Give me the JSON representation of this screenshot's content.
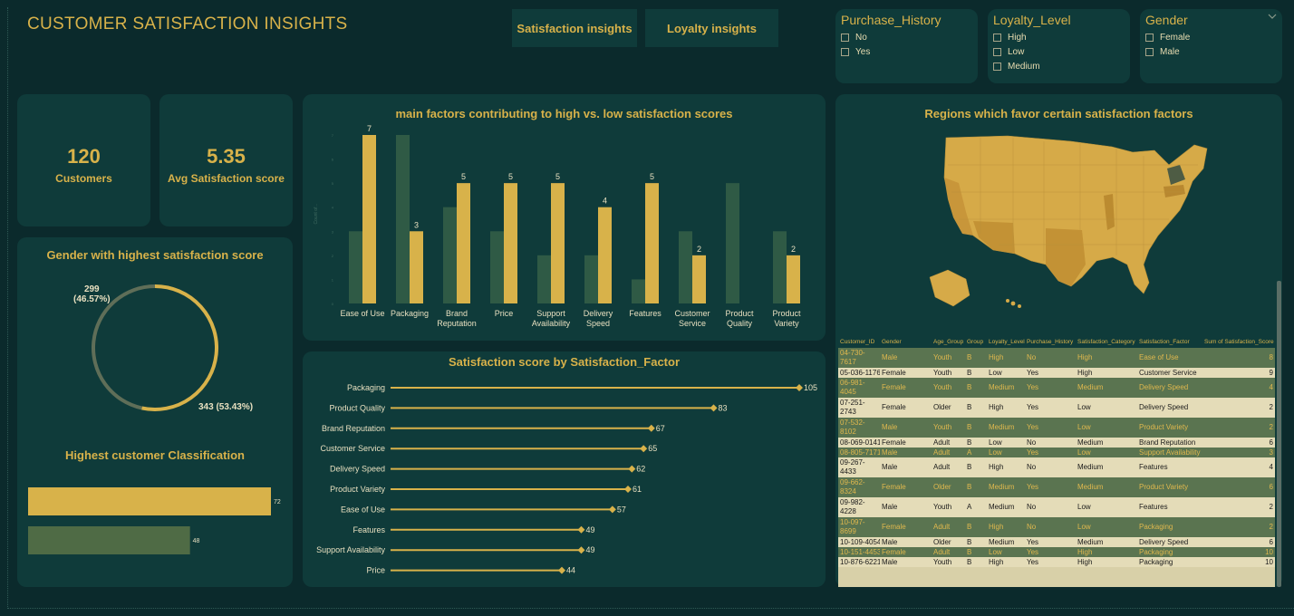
{
  "header": {
    "title": "CUSTOMER SATISFACTION  INSIGHTS",
    "nav": [
      {
        "label": "Satisfaction insights"
      },
      {
        "label": "Loyalty insights"
      }
    ]
  },
  "slicers": [
    {
      "title": "Purchase_History",
      "items": [
        "No",
        "Yes"
      ]
    },
    {
      "title": "Loyalty_Level",
      "items": [
        "High",
        "Low",
        "Medium"
      ]
    },
    {
      "title": "Gender",
      "items": [
        "Female",
        "Male"
      ],
      "icon": "chevron-down-icon"
    }
  ],
  "kpis": [
    {
      "value": "120",
      "label": "Customers"
    },
    {
      "value": "5.35",
      "label": "Avg Satisfaction score"
    }
  ],
  "gender_donut": {
    "title": "Gender with highest satisfaction score",
    "label_a": "299",
    "label_a_pct": "(46.57%)",
    "label_b": "343 (53.43%)"
  },
  "classification": {
    "title": "Highest customer Classification"
  },
  "factors_chart": {
    "title": "main factors contributing to high vs. low satisfaction scores",
    "ylabel": "Count of..."
  },
  "score_chart": {
    "title": "Satisfaction score by Satisfaction_Factor"
  },
  "map": {
    "title": "Regions which favor certain satisfaction factors"
  },
  "chart_data": [
    {
      "type": "bar",
      "title": "main factors contributing to high vs. low satisfaction scores",
      "categories": [
        "Ease of Use",
        "Packaging",
        "Brand Reputation",
        "Price",
        "Support Availability",
        "Delivery Speed",
        "Features",
        "Customer Service",
        "Product Quality",
        "Product Variety"
      ],
      "series": [
        {
          "values": [
            3,
            7,
            4,
            3,
            2,
            2,
            1,
            3,
            5,
            3
          ],
          "color": "#2f5a45"
        },
        {
          "values": [
            7,
            3,
            5,
            5,
            5,
            4,
            5,
            2,
            0,
            2
          ],
          "color": "#d8b24a"
        }
      ],
      "ylim": [
        0,
        7
      ]
    },
    {
      "type": "line",
      "title": "Satisfaction score by Satisfaction_Factor",
      "categories": [
        "Packaging",
        "Product Quality",
        "Brand Reputation",
        "Customer Service",
        "Delivery Speed",
        "Product Variety",
        "Ease of Use",
        "Features",
        "Support Availability",
        "Price"
      ],
      "values": [
        105,
        83,
        67,
        65,
        62,
        61,
        57,
        49,
        49,
        44
      ],
      "xlim": [
        0,
        105
      ]
    },
    {
      "type": "pie",
      "title": "Gender with highest satisfaction score",
      "categories": [
        "",
        ""
      ],
      "values": [
        299,
        343
      ],
      "colors": [
        "#5f6e58",
        "#d8b24a"
      ]
    },
    {
      "type": "bar",
      "title": "Highest customer Classification",
      "values": [
        72,
        48
      ],
      "colors": [
        "#d8b24a",
        "#4f6b45"
      ]
    }
  ],
  "table": {
    "columns": [
      "Customer_ID",
      "Gender",
      "Age_Group",
      "Group",
      "Loyalty_Level",
      "Purchase_History",
      "Satisfaction_Category",
      "Satisfaction_Factor",
      "Sum of Satisfaction_Score"
    ],
    "rows": [
      [
        "04-730-7617",
        "Male",
        "Youth",
        "B",
        "High",
        "No",
        "High",
        "Ease of Use",
        "8"
      ],
      [
        "05-036-1176",
        "Female",
        "Youth",
        "B",
        "Low",
        "Yes",
        "High",
        "Customer Service",
        "9"
      ],
      [
        "06-981-4045",
        "Female",
        "Youth",
        "B",
        "Medium",
        "Yes",
        "Medium",
        "Delivery Speed",
        "4"
      ],
      [
        "07-251-2743",
        "Female",
        "Older",
        "B",
        "High",
        "Yes",
        "Low",
        "Delivery Speed",
        "2"
      ],
      [
        "07-532-8102",
        "Male",
        "Youth",
        "B",
        "Medium",
        "Yes",
        "Low",
        "Product Variety",
        "2"
      ],
      [
        "08-069-0141",
        "Female",
        "Adult",
        "B",
        "Low",
        "No",
        "Medium",
        "Brand Reputation",
        "6"
      ],
      [
        "08-805-7171",
        "Male",
        "Adult",
        "A",
        "Low",
        "Yes",
        "Low",
        "Support Availability",
        "3"
      ],
      [
        "09-267-4433",
        "Male",
        "Adult",
        "B",
        "High",
        "No",
        "Medium",
        "Features",
        "4"
      ],
      [
        "09-662-8324",
        "Female",
        "Older",
        "B",
        "Medium",
        "Yes",
        "Medium",
        "Product Variety",
        "6"
      ],
      [
        "09-982-4228",
        "Male",
        "Youth",
        "A",
        "Medium",
        "No",
        "Low",
        "Features",
        "2"
      ],
      [
        "10-097-8699",
        "Female",
        "Adult",
        "B",
        "High",
        "No",
        "Low",
        "Packaging",
        "2"
      ],
      [
        "10-109-4054",
        "Male",
        "Older",
        "B",
        "Medium",
        "Yes",
        "Medium",
        "Delivery Speed",
        "6"
      ],
      [
        "10-151-4453",
        "Female",
        "Adult",
        "B",
        "Low",
        "Yes",
        "High",
        "Packaging",
        "10"
      ],
      [
        "10-876-6221",
        "Male",
        "Youth",
        "B",
        "High",
        "Yes",
        "High",
        "Packaging",
        "10"
      ]
    ]
  }
}
